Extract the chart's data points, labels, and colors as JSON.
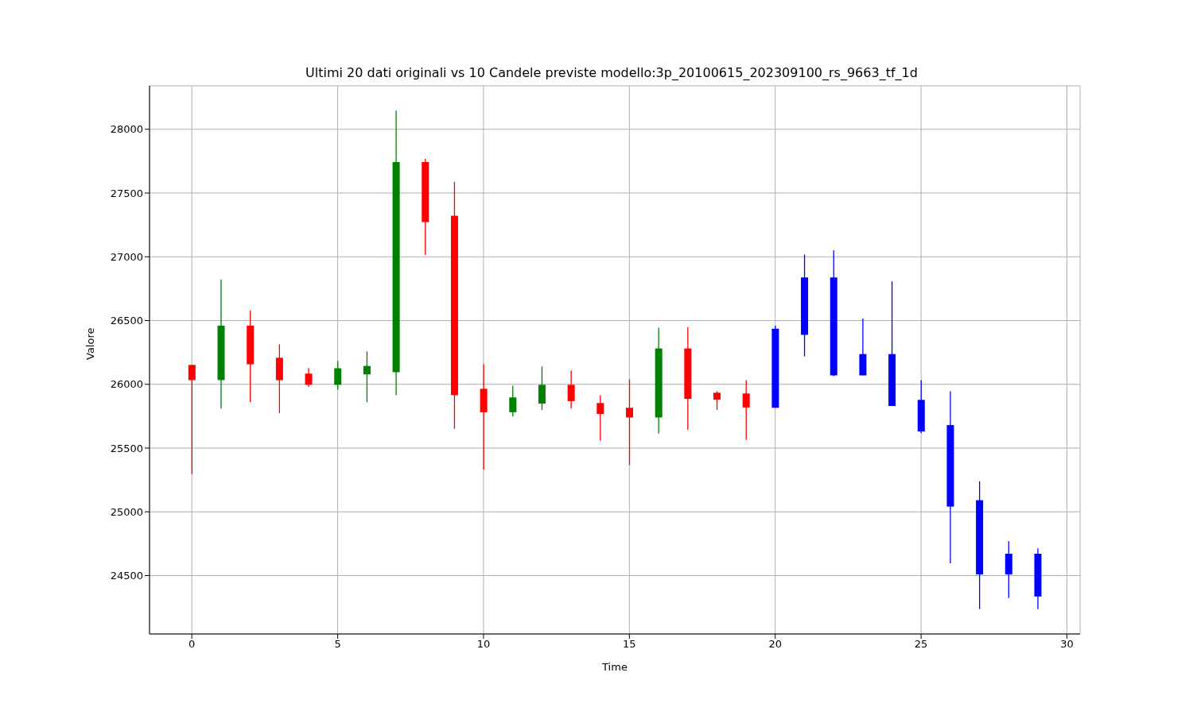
{
  "chart_data": {
    "type": "candlestick",
    "title": "Ultimi 20 dati originali vs 10 Candele previste modello:3p_20100615_202309100_rs_9663_tf_1d",
    "xlabel": "Time",
    "ylabel": "Valore",
    "x": [
      0,
      1,
      2,
      3,
      4,
      5,
      6,
      7,
      8,
      9,
      10,
      11,
      12,
      13,
      14,
      15,
      16,
      17,
      18,
      19,
      20,
      21,
      22,
      23,
      24,
      25,
      26,
      27,
      28,
      29
    ],
    "ohlc": [
      [
        26152,
        26152,
        25296,
        26033
      ],
      [
        26033,
        26822,
        25810,
        26460
      ],
      [
        26460,
        26580,
        25859,
        26157
      ],
      [
        26208,
        26314,
        25773,
        26033
      ],
      [
        26084,
        26128,
        25979,
        25996
      ],
      [
        25996,
        26184,
        25958,
        26126
      ],
      [
        26078,
        26258,
        25859,
        26144
      ],
      [
        26095,
        28146,
        25915,
        27743
      ],
      [
        27743,
        27768,
        27014,
        27272
      ],
      [
        27322,
        27588,
        25651,
        25915
      ],
      [
        25965,
        26157,
        25331,
        25781
      ],
      [
        25781,
        25989,
        25748,
        25897
      ],
      [
        25849,
        26140,
        25799,
        25996
      ],
      [
        25996,
        26107,
        25810,
        25868
      ],
      [
        25853,
        25915,
        25558,
        25768
      ],
      [
        25816,
        26039,
        25366,
        25740
      ],
      [
        25740,
        26444,
        25613,
        26281
      ],
      [
        26281,
        26448,
        25644,
        25886
      ],
      [
        25934,
        25946,
        25799,
        25880
      ],
      [
        25928,
        26033,
        25564,
        25818
      ],
      [
        25816,
        26460,
        25816,
        26436
      ],
      [
        26388,
        27018,
        26219,
        26838
      ],
      [
        26838,
        27051,
        26064,
        26070
      ],
      [
        26070,
        26516,
        26070,
        26237
      ],
      [
        26237,
        26807,
        25830,
        25830
      ],
      [
        25878,
        26033,
        25618,
        25630
      ],
      [
        25680,
        25946,
        24596,
        25041
      ],
      [
        25091,
        25240,
        24237,
        24509
      ],
      [
        24509,
        24769,
        24324,
        24671
      ],
      [
        24671,
        24713,
        24237,
        24336
      ]
    ],
    "colors": [
      "#ff0000",
      "#008000",
      "#ff0000",
      "#ff0000",
      "#ff0000",
      "#008000",
      "#008000",
      "#008000",
      "#ff0000",
      "#ff0000",
      "#ff0000",
      "#008000",
      "#008000",
      "#ff0000",
      "#ff0000",
      "#ff0000",
      "#008000",
      "#ff0000",
      "#ff0000",
      "#ff0000",
      "#0000ff",
      "#0000ff",
      "#0000ff",
      "#0000ff",
      "#0000ff",
      "#0000ff",
      "#0000ff",
      "#0000ff",
      "#0000ff",
      "#0000ff"
    ],
    "xlim": [
      -1.45,
      30.45
    ],
    "xticks": [
      0,
      5,
      10,
      15,
      20,
      25,
      30
    ],
    "ylim": [
      24042,
      28341
    ],
    "yticks": [
      24500,
      25000,
      25500,
      26000,
      26500,
      27000,
      27500,
      28000
    ],
    "grid": true
  }
}
